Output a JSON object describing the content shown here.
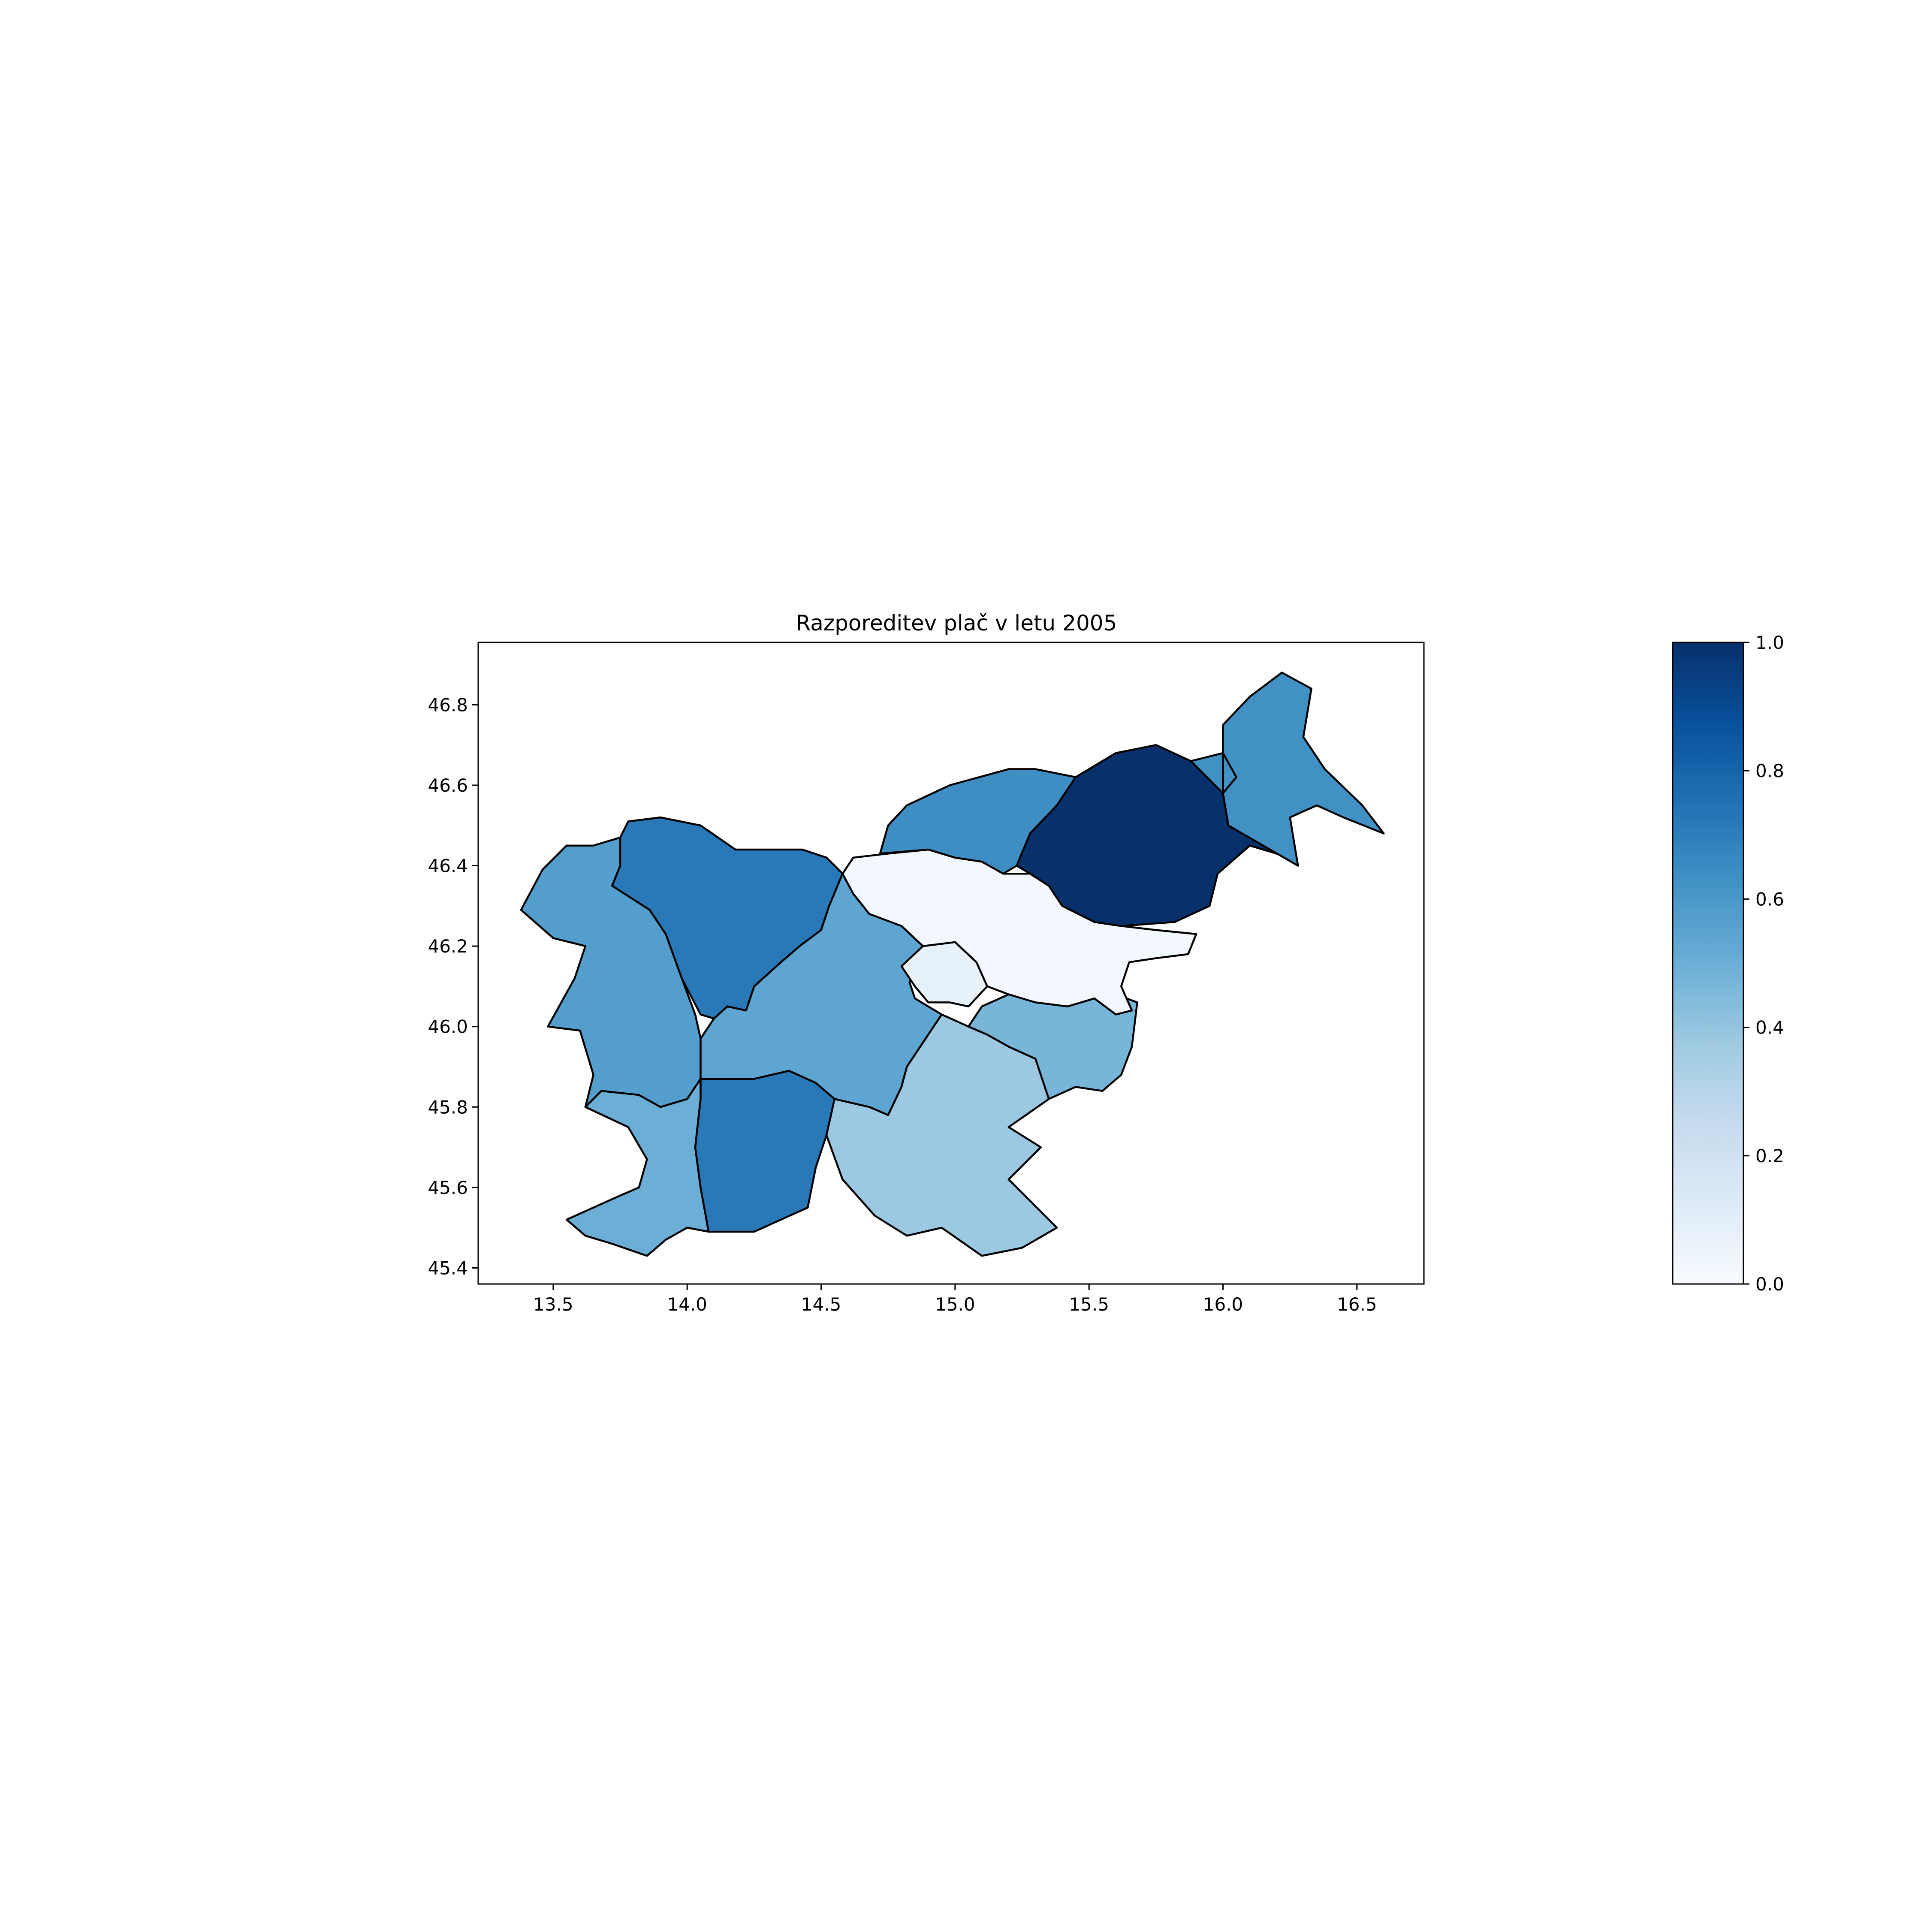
{
  "chart_data": {
    "type": "choropleth",
    "title": "Razporeditev plač v letu 2005",
    "xlim": [
      13.22,
      16.75
    ],
    "ylim": [
      45.36,
      46.955
    ],
    "x_ticks": [
      13.5,
      14.0,
      14.5,
      15.0,
      15.5,
      16.0,
      16.5
    ],
    "x_tick_labels": [
      "13.5",
      "14.0",
      "14.5",
      "15.0",
      "15.5",
      "16.0",
      "16.5"
    ],
    "y_ticks": [
      45.4,
      45.6,
      45.8,
      46.0,
      46.2,
      46.4,
      46.6,
      46.8
    ],
    "y_tick_labels": [
      "45.4",
      "45.6",
      "45.8",
      "46.0",
      "46.2",
      "46.4",
      "46.6",
      "46.8"
    ],
    "colormap": [
      "#f7fbff",
      "#deebf7",
      "#c6dbef",
      "#9ecae1",
      "#6baed6",
      "#4292c6",
      "#2171b5",
      "#08519c",
      "#08306b"
    ],
    "colorbar": {
      "range": [
        0.0,
        1.0
      ],
      "ticks": [
        0.0,
        0.2,
        0.4,
        0.6,
        0.8,
        1.0
      ],
      "tick_labels": [
        "0.0",
        "0.2",
        "0.4",
        "0.6",
        "0.8",
        "1.0"
      ]
    },
    "regions": [
      {
        "id": "goriska",
        "value": 0.57,
        "outline": [
          [
            13.38,
            46.29
          ],
          [
            13.46,
            46.39
          ],
          [
            13.55,
            46.45
          ],
          [
            13.65,
            46.45
          ],
          [
            13.75,
            46.47
          ],
          [
            13.75,
            46.4
          ],
          [
            13.72,
            46.35
          ],
          [
            13.86,
            46.29
          ],
          [
            13.92,
            46.23
          ],
          [
            13.98,
            46.12
          ],
          [
            14.03,
            46.03
          ],
          [
            14.05,
            45.97
          ],
          [
            14.05,
            45.87
          ],
          [
            14.0,
            45.82
          ],
          [
            13.9,
            45.8
          ],
          [
            13.82,
            45.83
          ],
          [
            13.68,
            45.84
          ],
          [
            13.62,
            45.8
          ],
          [
            13.65,
            45.88
          ],
          [
            13.6,
            45.99
          ],
          [
            13.48,
            46.0
          ],
          [
            13.58,
            46.12
          ],
          [
            13.62,
            46.2
          ],
          [
            13.5,
            46.22
          ],
          [
            13.38,
            46.29
          ]
        ]
      },
      {
        "id": "gorenjska",
        "value": 0.72,
        "outline": [
          [
            13.72,
            46.35
          ],
          [
            13.75,
            46.4
          ],
          [
            13.75,
            46.47
          ],
          [
            13.78,
            46.51
          ],
          [
            13.9,
            46.52
          ],
          [
            14.05,
            46.5
          ],
          [
            14.18,
            46.44
          ],
          [
            14.28,
            46.44
          ],
          [
            14.43,
            46.44
          ],
          [
            14.52,
            46.42
          ],
          [
            14.58,
            46.38
          ],
          [
            14.53,
            46.3
          ],
          [
            14.5,
            46.24
          ],
          [
            14.42,
            46.2
          ],
          [
            14.35,
            46.16
          ],
          [
            14.25,
            46.1
          ],
          [
            14.22,
            46.04
          ],
          [
            14.15,
            46.05
          ],
          [
            14.1,
            46.02
          ],
          [
            14.05,
            46.03
          ],
          [
            13.98,
            46.12
          ],
          [
            13.92,
            46.23
          ],
          [
            13.86,
            46.29
          ],
          [
            13.72,
            46.35
          ]
        ]
      },
      {
        "id": "osrednjeslovenska",
        "value": 0.54,
        "outline": [
          [
            14.58,
            46.38
          ],
          [
            14.62,
            46.33
          ],
          [
            14.68,
            46.28
          ],
          [
            14.8,
            46.25
          ],
          [
            14.88,
            46.2
          ],
          [
            14.85,
            46.14
          ],
          [
            14.83,
            46.11
          ],
          [
            14.85,
            46.07
          ],
          [
            14.95,
            46.03
          ],
          [
            14.88,
            45.96
          ],
          [
            14.82,
            45.9
          ],
          [
            14.8,
            45.85
          ],
          [
            14.75,
            45.78
          ],
          [
            14.68,
            45.8
          ],
          [
            14.55,
            45.82
          ],
          [
            14.52,
            45.73
          ],
          [
            14.48,
            45.86
          ],
          [
            14.38,
            45.89
          ],
          [
            14.25,
            45.87
          ],
          [
            14.05,
            45.87
          ],
          [
            14.05,
            45.97
          ],
          [
            14.1,
            46.02
          ],
          [
            14.15,
            46.05
          ],
          [
            14.22,
            46.04
          ],
          [
            14.25,
            46.1
          ],
          [
            14.35,
            46.16
          ],
          [
            14.42,
            46.2
          ],
          [
            14.5,
            46.24
          ],
          [
            14.53,
            46.3
          ],
          [
            14.58,
            46.38
          ]
        ]
      },
      {
        "id": "obalno-kraska",
        "value": 0.5,
        "outline": [
          [
            13.62,
            45.8
          ],
          [
            13.68,
            45.84
          ],
          [
            13.82,
            45.83
          ],
          [
            13.9,
            45.8
          ],
          [
            14.0,
            45.82
          ],
          [
            14.05,
            45.87
          ],
          [
            14.05,
            45.82
          ],
          [
            14.03,
            45.7
          ],
          [
            14.05,
            45.6
          ],
          [
            14.08,
            45.49
          ],
          [
            14.0,
            45.5
          ],
          [
            13.92,
            45.47
          ],
          [
            13.85,
            45.43
          ],
          [
            13.72,
            45.46
          ],
          [
            13.62,
            45.48
          ],
          [
            13.55,
            45.52
          ],
          [
            13.65,
            45.55
          ],
          [
            13.75,
            45.58
          ],
          [
            13.82,
            45.6
          ],
          [
            13.85,
            45.67
          ],
          [
            13.78,
            45.75
          ],
          [
            13.62,
            45.8
          ]
        ]
      },
      {
        "id": "primorsko-notranjska",
        "value": 0.72,
        "outline": [
          [
            14.05,
            45.87
          ],
          [
            14.25,
            45.87
          ],
          [
            14.38,
            45.89
          ],
          [
            14.48,
            45.86
          ],
          [
            14.55,
            45.82
          ],
          [
            14.52,
            45.73
          ],
          [
            14.48,
            45.65
          ],
          [
            14.45,
            45.55
          ],
          [
            14.35,
            45.52
          ],
          [
            14.25,
            45.49
          ],
          [
            14.08,
            45.49
          ],
          [
            14.05,
            45.6
          ],
          [
            14.03,
            45.7
          ],
          [
            14.05,
            45.82
          ],
          [
            14.05,
            45.87
          ]
        ]
      },
      {
        "id": "jugovzhodna-slovenija",
        "value": 0.38,
        "outline": [
          [
            14.55,
            45.82
          ],
          [
            14.68,
            45.8
          ],
          [
            14.75,
            45.78
          ],
          [
            14.8,
            45.85
          ],
          [
            14.82,
            45.9
          ],
          [
            14.88,
            45.96
          ],
          [
            14.95,
            46.03
          ],
          [
            15.05,
            46.0
          ],
          [
            15.12,
            45.98
          ],
          [
            15.2,
            45.95
          ],
          [
            15.3,
            45.92
          ],
          [
            15.35,
            45.82
          ],
          [
            15.2,
            45.75
          ],
          [
            15.32,
            45.7
          ],
          [
            15.2,
            45.62
          ],
          [
            15.38,
            45.5
          ],
          [
            15.25,
            45.45
          ],
          [
            15.1,
            45.43
          ],
          [
            14.95,
            45.5
          ],
          [
            14.82,
            45.48
          ],
          [
            14.7,
            45.53
          ],
          [
            14.58,
            45.62
          ],
          [
            14.52,
            45.73
          ],
          [
            14.55,
            45.82
          ]
        ]
      },
      {
        "id": "posavska",
        "value": 0.47,
        "outline": [
          [
            15.05,
            46.0
          ],
          [
            15.12,
            45.98
          ],
          [
            15.2,
            45.95
          ],
          [
            15.3,
            45.92
          ],
          [
            15.35,
            45.82
          ],
          [
            15.45,
            45.85
          ],
          [
            15.55,
            45.84
          ],
          [
            15.62,
            45.88
          ],
          [
            15.66,
            45.95
          ],
          [
            15.68,
            46.06
          ],
          [
            15.6,
            46.08
          ],
          [
            15.52,
            46.1
          ],
          [
            15.42,
            46.08
          ],
          [
            15.3,
            46.07
          ],
          [
            15.2,
            46.08
          ],
          [
            15.1,
            46.05
          ],
          [
            15.05,
            46.0
          ]
        ]
      },
      {
        "id": "zasavska",
        "value": 0.08,
        "outline": [
          [
            14.8,
            46.15
          ],
          [
            14.88,
            46.2
          ],
          [
            15.0,
            46.21
          ],
          [
            15.08,
            46.16
          ],
          [
            15.12,
            46.1
          ],
          [
            15.05,
            46.05
          ],
          [
            14.98,
            46.06
          ],
          [
            14.9,
            46.06
          ],
          [
            14.85,
            46.1
          ],
          [
            14.8,
            46.15
          ]
        ]
      },
      {
        "id": "savinjska",
        "value": 0.02,
        "outline": [
          [
            14.58,
            46.38
          ],
          [
            14.62,
            46.42
          ],
          [
            14.75,
            46.43
          ],
          [
            14.9,
            46.44
          ],
          [
            15.0,
            46.42
          ],
          [
            15.1,
            46.41
          ],
          [
            15.18,
            46.38
          ],
          [
            15.28,
            46.38
          ],
          [
            15.35,
            46.35
          ],
          [
            15.4,
            46.3
          ],
          [
            15.52,
            46.26
          ],
          [
            15.62,
            46.25
          ],
          [
            15.75,
            46.24
          ],
          [
            15.9,
            46.23
          ],
          [
            15.87,
            46.18
          ],
          [
            15.75,
            46.17
          ],
          [
            15.65,
            46.16
          ],
          [
            15.62,
            46.1
          ],
          [
            15.66,
            46.04
          ],
          [
            15.6,
            46.03
          ],
          [
            15.52,
            46.07
          ],
          [
            15.42,
            46.05
          ],
          [
            15.3,
            46.06
          ],
          [
            15.2,
            46.08
          ],
          [
            15.12,
            46.1
          ],
          [
            15.08,
            46.16
          ],
          [
            15.0,
            46.21
          ],
          [
            14.88,
            46.2
          ],
          [
            14.8,
            46.25
          ],
          [
            14.68,
            46.28
          ],
          [
            14.62,
            46.33
          ],
          [
            14.58,
            46.38
          ]
        ]
      },
      {
        "id": "koroska",
        "value": 0.64,
        "outline": [
          [
            14.72,
            46.43
          ],
          [
            14.75,
            46.5
          ],
          [
            14.82,
            46.55
          ],
          [
            14.98,
            46.6
          ],
          [
            15.2,
            46.64
          ],
          [
            15.3,
            46.64
          ],
          [
            15.45,
            46.62
          ],
          [
            15.38,
            46.55
          ],
          [
            15.28,
            46.48
          ],
          [
            15.23,
            46.4
          ],
          [
            15.18,
            46.38
          ],
          [
            15.1,
            46.41
          ],
          [
            15.0,
            46.42
          ],
          [
            14.9,
            46.44
          ],
          [
            14.72,
            46.43
          ]
        ]
      },
      {
        "id": "podravska",
        "value": 1.0,
        "outline": [
          [
            15.38,
            46.55
          ],
          [
            15.45,
            46.62
          ],
          [
            15.6,
            46.68
          ],
          [
            15.75,
            46.7
          ],
          [
            15.88,
            46.66
          ],
          [
            16.0,
            46.58
          ],
          [
            16.02,
            46.5
          ],
          [
            16.15,
            46.45
          ],
          [
            16.28,
            46.4
          ],
          [
            16.25,
            46.42
          ],
          [
            16.1,
            46.45
          ],
          [
            15.98,
            46.38
          ],
          [
            15.95,
            46.3
          ],
          [
            15.82,
            46.26
          ],
          [
            15.62,
            46.25
          ],
          [
            15.52,
            46.26
          ],
          [
            15.4,
            46.3
          ],
          [
            15.35,
            46.35
          ],
          [
            15.28,
            46.38
          ],
          [
            15.23,
            46.4
          ],
          [
            15.28,
            46.48
          ],
          [
            15.38,
            46.55
          ]
        ]
      },
      {
        "id": "pomurska",
        "value": 0.63,
        "outline": [
          [
            15.88,
            46.66
          ],
          [
            16.0,
            46.68
          ],
          [
            16.05,
            46.62
          ],
          [
            16.0,
            46.58
          ],
          [
            16.0,
            46.75
          ],
          [
            16.1,
            46.82
          ],
          [
            16.22,
            46.88
          ],
          [
            16.33,
            46.84
          ],
          [
            16.3,
            46.72
          ],
          [
            16.38,
            46.64
          ],
          [
            16.52,
            46.55
          ],
          [
            16.6,
            46.48
          ],
          [
            16.45,
            46.52
          ],
          [
            16.35,
            46.55
          ],
          [
            16.25,
            46.52
          ],
          [
            16.28,
            46.4
          ],
          [
            16.15,
            46.45
          ],
          [
            16.02,
            46.5
          ],
          [
            16.0,
            46.58
          ],
          [
            15.88,
            46.66
          ]
        ]
      }
    ]
  }
}
